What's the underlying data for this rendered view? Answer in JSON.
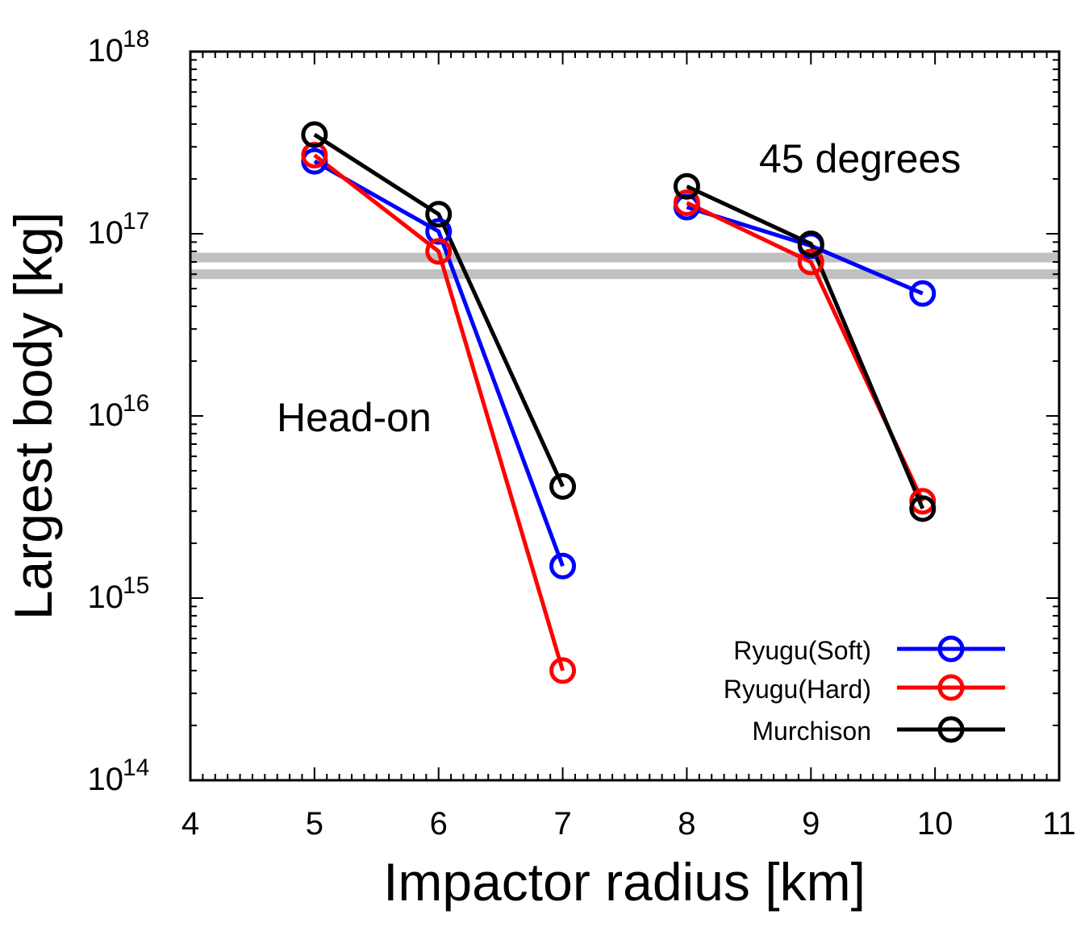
{
  "chart_data": {
    "type": "line",
    "xlabel": "Impactor radius [km]",
    "ylabel": "Largest body [kg]",
    "xlim": [
      4,
      11
    ],
    "ylim": [
      100000000000000.0,
      1e+18
    ],
    "yscale": "log",
    "x_ticks": [
      "4",
      "5",
      "6",
      "7",
      "8",
      "9",
      "10",
      "11"
    ],
    "y_ticks": [
      {
        "base": "10",
        "exp": "14"
      },
      {
        "base": "10",
        "exp": "15"
      },
      {
        "base": "10",
        "exp": "16"
      },
      {
        "base": "10",
        "exp": "17"
      },
      {
        "base": "10",
        "exp": "18"
      }
    ],
    "grid": false,
    "legend_position": "bottom-right",
    "annotations": [
      "Head-on",
      "45 degrees"
    ],
    "reference_band": {
      "lower": 6e+16,
      "upper": 7.4e+16,
      "color": "#c0c0c0"
    },
    "series": [
      {
        "name": "Ryugu(Soft)",
        "color": "#0000ff",
        "segments": [
          {
            "x": [
              5,
              6,
              7
            ],
            "y": [
              2.5e+17,
              1.03e+17,
              1500000000000000.0
            ]
          },
          {
            "x": [
              8,
              9,
              9.9
            ],
            "y": [
              1.4e+17,
              8.6e+16,
              4.7e+16
            ]
          }
        ]
      },
      {
        "name": "Ryugu(Hard)",
        "color": "#ff0000",
        "segments": [
          {
            "x": [
              5,
              6,
              7
            ],
            "y": [
              2.7e+17,
              8e+16,
              400000000000000.0
            ]
          },
          {
            "x": [
              8,
              9,
              9.9
            ],
            "y": [
              1.48e+17,
              7e+16,
              3400000000000000.0
            ]
          }
        ]
      },
      {
        "name": "Murchison",
        "color": "#000000",
        "segments": [
          {
            "x": [
              5,
              6,
              7
            ],
            "y": [
              3.5e+17,
              1.28e+17,
              4100000000000000.0
            ]
          },
          {
            "x": [
              8,
              9,
              9.9
            ],
            "y": [
              1.82e+17,
              8.8e+16,
              3100000000000000.0
            ]
          }
        ]
      }
    ]
  }
}
